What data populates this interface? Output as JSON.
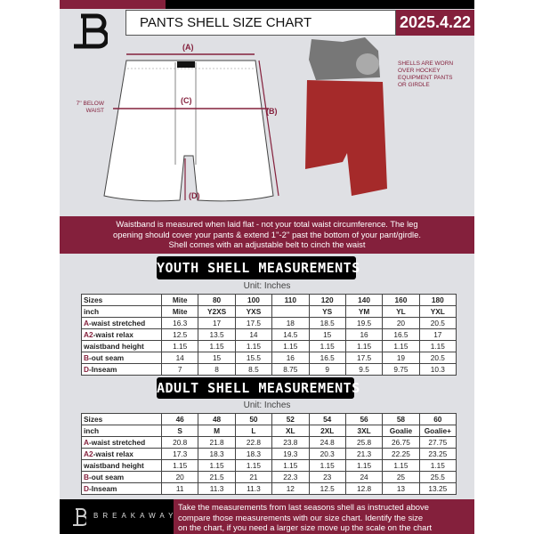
{
  "header": {
    "title": "PANTS SHELL SIZE CHART",
    "date": "2025.4.22",
    "logo": "B"
  },
  "diagram": {
    "label_a": "(A)",
    "label_b": "(B)",
    "label_c": "(C)",
    "label_d": "(D)",
    "below_waist_line1": "7'' BELOW",
    "below_waist_line2": "WAIST",
    "note_lines": [
      "SHELLS ARE WORN",
      "OVER HOCKEY",
      "EQUIPMENT PANTS",
      "OR GIRDLE"
    ]
  },
  "info_band": {
    "lines": [
      "Waistband is measured when laid flat - not your total waist circumference. The leg",
      "opening should cover your pants & extend 1''-2'' past the bottom of your pant/girdle.",
      "Shell comes with an adjustable belt to cinch the waist"
    ]
  },
  "youth": {
    "title": "YOUTH SHELL MEASUREMENTS",
    "unit": "Unit: Inches",
    "rows": [
      {
        "prefix": "",
        "label": "Sizes",
        "values": [
          "Mite",
          "80",
          "100",
          "110",
          "120",
          "140",
          "160",
          "180"
        ],
        "header": true
      },
      {
        "prefix": "",
        "label": "inch",
        "values": [
          "Mite",
          "Y2XS",
          "YXS",
          "",
          "YS",
          "YM",
          "YL",
          "YXL"
        ],
        "header": true
      },
      {
        "prefix": "A",
        "label": "-waist stretched",
        "values": [
          "16.3",
          "17",
          "17.5",
          "18",
          "18.5",
          "19.5",
          "20",
          "20.5"
        ]
      },
      {
        "prefix": "A2",
        "label": "-waist relax",
        "values": [
          "12.5",
          "13.5",
          "14",
          "14.5",
          "15",
          "16",
          "16.5",
          "17"
        ]
      },
      {
        "prefix": "",
        "label": "waistband height",
        "values": [
          "1.15",
          "1.15",
          "1.15",
          "1.15",
          "1.15",
          "1.15",
          "1.15",
          "1.15"
        ]
      },
      {
        "prefix": "B",
        "label": "-out seam",
        "values": [
          "14",
          "15",
          "15.5",
          "16",
          "16.5",
          "17.5",
          "19",
          "20.5"
        ]
      },
      {
        "prefix": "D",
        "label": "-Inseam",
        "values": [
          "7",
          "8",
          "8.5",
          "8.75",
          "9",
          "9.5",
          "9.75",
          "10.3"
        ]
      }
    ]
  },
  "adult": {
    "title": "ADULT SHELL MEASUREMENTS",
    "unit": "Unit: Inches",
    "rows": [
      {
        "prefix": "",
        "label": "Sizes",
        "values": [
          "46",
          "48",
          "50",
          "52",
          "54",
          "56",
          "58",
          "60"
        ],
        "header": true
      },
      {
        "prefix": "",
        "label": "inch",
        "values": [
          "S",
          "M",
          "L",
          "XL",
          "2XL",
          "3XL",
          "Goalie",
          "Goalie+"
        ],
        "header": true
      },
      {
        "prefix": "A",
        "label": "-waist stretched",
        "values": [
          "20.8",
          "21.8",
          "22.8",
          "23.8",
          "24.8",
          "25.8",
          "26.75",
          "27.75"
        ]
      },
      {
        "prefix": "A2",
        "label": "-waist relax",
        "values": [
          "17.3",
          "18.3",
          "18.3",
          "19.3",
          "20.3",
          "21.3",
          "22.25",
          "23.25"
        ]
      },
      {
        "prefix": "",
        "label": "waistband height",
        "values": [
          "1.15",
          "1.15",
          "1.15",
          "1.15",
          "1.15",
          "1.15",
          "1.15",
          "1.15"
        ]
      },
      {
        "prefix": "B",
        "label": "-out seam",
        "values": [
          "20",
          "21.5",
          "21",
          "22.3",
          "23",
          "24",
          "25",
          "25.5"
        ]
      },
      {
        "prefix": "D",
        "label": "-Inseam",
        "values": [
          "11",
          "11.3",
          "11.3",
          "12",
          "12.5",
          "12.8",
          "13",
          "13.25"
        ]
      }
    ]
  },
  "footer": {
    "brand": "BREAKAWAY",
    "lines": [
      "Take the measurements from last seasons shell as instructed above",
      "compare those measurements  with our size chart. Identify the size",
      "on the chart, if you need a larger size move up the scale on the chart"
    ]
  },
  "colors": {
    "accent": "#84203c",
    "background": "#dfe0e4",
    "dark": "#000000",
    "shell_red": "#a52a2a"
  }
}
